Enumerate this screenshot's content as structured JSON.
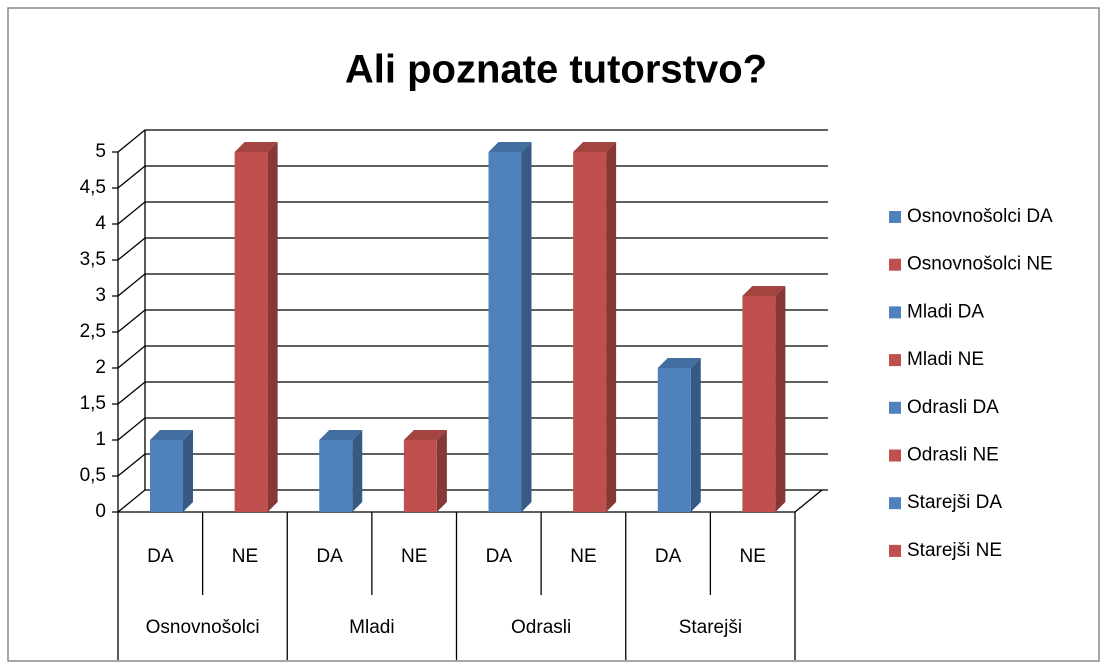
{
  "chart_data": {
    "type": "bar3d",
    "title": "Ali poznate tutorstvo?",
    "categories": [
      "DA",
      "NE",
      "DA",
      "NE",
      "DA",
      "NE",
      "DA",
      "NE"
    ],
    "groups": [
      "Osnovnošolci",
      "Mladi",
      "Odrasli",
      "Starejši"
    ],
    "series": [
      {
        "name": "Osnovnošolci DA",
        "color": "#4f81bd",
        "values": [
          1,
          null,
          null,
          null,
          null,
          null,
          null,
          null
        ]
      },
      {
        "name": "Osnovnošolci NE",
        "color": "#c0504d",
        "values": [
          null,
          5,
          null,
          null,
          null,
          null,
          null,
          null
        ]
      },
      {
        "name": "Mladi DA",
        "color": "#4f81bd",
        "values": [
          null,
          null,
          1,
          null,
          null,
          null,
          null,
          null
        ]
      },
      {
        "name": "Mladi NE",
        "color": "#c0504d",
        "values": [
          null,
          null,
          null,
          1,
          null,
          null,
          null,
          null
        ]
      },
      {
        "name": "Odrasli DA",
        "color": "#4f81bd",
        "values": [
          null,
          null,
          null,
          null,
          5,
          null,
          null,
          null
        ]
      },
      {
        "name": "Odrasli NE",
        "color": "#c0504d",
        "values": [
          null,
          null,
          null,
          null,
          null,
          5,
          null,
          null
        ]
      },
      {
        "name": "Starejši DA",
        "color": "#4f81bd",
        "values": [
          null,
          null,
          null,
          null,
          null,
          null,
          2,
          null
        ]
      },
      {
        "name": "Starejši NE",
        "color": "#c0504d",
        "values": [
          null,
          null,
          null,
          null,
          null,
          null,
          null,
          3
        ]
      }
    ],
    "ylim": [
      0,
      5
    ],
    "yticks": [
      0,
      {
        "value": 0.5,
        "label": "0,5"
      },
      1,
      {
        "value": 1.5,
        "label": "1,5"
      },
      2,
      {
        "value": 2.5,
        "label": "2,5"
      },
      3,
      {
        "value": 3.5,
        "label": "3,5"
      },
      4,
      {
        "value": 4.5,
        "label": "4,5"
      },
      5
    ],
    "grid": true,
    "legend": "right"
  }
}
